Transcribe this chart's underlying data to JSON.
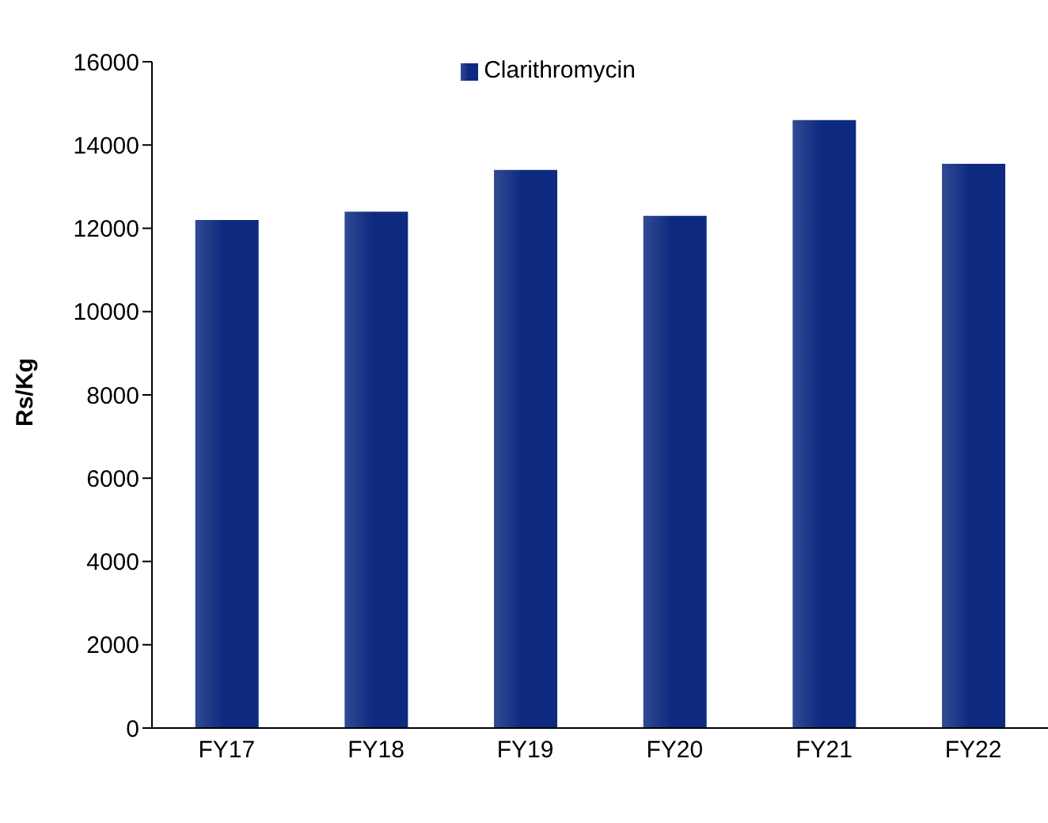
{
  "chart_data": {
    "type": "bar",
    "categories": [
      "FY17",
      "FY18",
      "FY19",
      "FY20",
      "FY21",
      "FY22"
    ],
    "series": [
      {
        "name": "Clarithromycin",
        "color": "#0d2a80",
        "values": [
          12200,
          12400,
          13400,
          12300,
          14600,
          13550
        ]
      }
    ],
    "ylabel": "Rs/Kg",
    "ylim": [
      0,
      16000
    ],
    "yticks": [
      0,
      2000,
      4000,
      6000,
      8000,
      10000,
      12000,
      14000,
      16000
    ],
    "grid": false,
    "legend": "top"
  }
}
